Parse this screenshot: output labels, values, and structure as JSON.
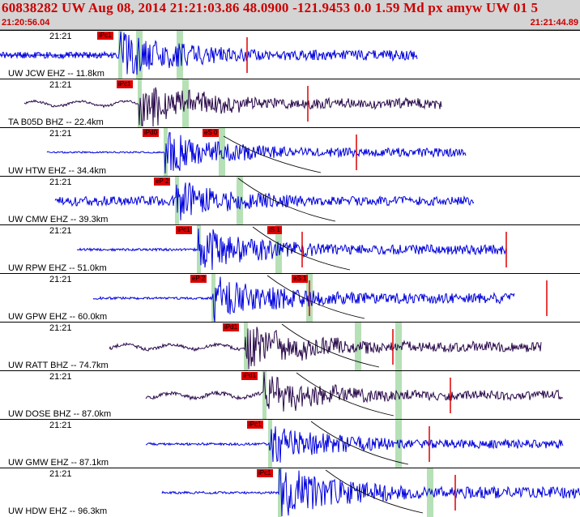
{
  "header": {
    "title": "60838282 UW Aug 08, 2014 21:21:03.86   48.0900 -121.9453  0.0 1.59 Md px amyw UW 01   5",
    "start_time": "21:20:56.04",
    "end_time": "21:21:44.89"
  },
  "colors": {
    "header_bg": "#d4d4d4",
    "header_text": "#cc0000",
    "trace_ehz": "#0000dd",
    "trace_bhz": "#2a0a4a",
    "pick_red": "#dd0000",
    "window_green": "#b6e0b6"
  },
  "panels": [
    {
      "time": "21:21",
      "label": "UW JCW EHZ -- 11.8km",
      "trace": "ehz",
      "start": 0,
      "p": 148,
      "end": 515,
      "amp": 26,
      "pre": 8,
      "picks": [
        {
          "text": "iPc1"
        }
      ],
      "markers": [
        305
      ]
    },
    {
      "time": "21:21",
      "label": "TA B05D BHZ -- 22.4km",
      "trace": "bhz",
      "start": 30,
      "p": 172,
      "end": 545,
      "amp": 24,
      "pre": 3,
      "picks": [
        {
          "text": "iPc1"
        }
      ],
      "markers": [
        380
      ]
    },
    {
      "time": "21:21",
      "label": "UW HTW EHZ -- 34.4km",
      "trace": "ehz",
      "start": 58,
      "p": 204,
      "end": 575,
      "amp": 22,
      "pre": 2,
      "picks": [
        {
          "text": "iPd0"
        },
        {
          "text": "eS 0"
        }
      ],
      "markers": [
        440
      ]
    },
    {
      "time": "21:21",
      "label": "UW CMW EHZ -- 39.3km",
      "trace": "ehz",
      "start": 68,
      "p": 218,
      "end": 585,
      "amp": 22,
      "pre": 12,
      "picks": [
        {
          "text": "eP 2"
        }
      ],
      "markers": []
    },
    {
      "time": "21:21",
      "label": "UW RPW EHZ -- 51.0km",
      "trace": "ehz",
      "start": 95,
      "p": 245,
      "end": 625,
      "amp": 24,
      "pre": 3,
      "picks": [
        {
          "text": "iPc1"
        },
        {
          "text": "iS 1"
        }
      ],
      "markers": [
        373,
        625
      ]
    },
    {
      "time": "21:21",
      "label": "UW GPW EHZ -- 60.0km",
      "trace": "ehz",
      "start": 115,
      "p": 263,
      "end": 635,
      "amp": 26,
      "pre": 3,
      "picks": [
        {
          "text": "eP 2"
        },
        {
          "text": "eS 1"
        }
      ],
      "markers": [
        382,
        675
      ]
    },
    {
      "time": "21:21",
      "label": "UW RATT BHZ -- 74.7km",
      "trace": "bhz",
      "start": 135,
      "p": 303,
      "end": 668,
      "amp": 24,
      "pre": 4,
      "picks": [
        {
          "text": "iPd1"
        }
      ],
      "markers": [
        485
      ]
    },
    {
      "time": "21:21",
      "label": "UW DOSE BHZ -- 87.0km",
      "trace": "bhz",
      "start": 180,
      "p": 326,
      "end": 695,
      "amp": 22,
      "pre": 5,
      "picks": [
        {
          "text": "iPd1"
        }
      ],
      "markers": [
        556
      ]
    },
    {
      "time": "21:21",
      "label": "UW GMW EHZ -- 87.1km",
      "trace": "ehz",
      "start": 180,
      "p": 333,
      "end": 695,
      "amp": 22,
      "pre": 3,
      "picks": [
        {
          "text": "iPc1"
        }
      ],
      "markers": [
        530
      ]
    },
    {
      "time": "21:21",
      "label": "UW HDW EHZ -- 96.3km",
      "trace": "ehz",
      "start": 200,
      "p": 345,
      "end": 716,
      "amp": 28,
      "pre": 3,
      "picks": [
        {
          "text": "iPc1"
        }
      ],
      "markers": [
        562
      ]
    }
  ]
}
